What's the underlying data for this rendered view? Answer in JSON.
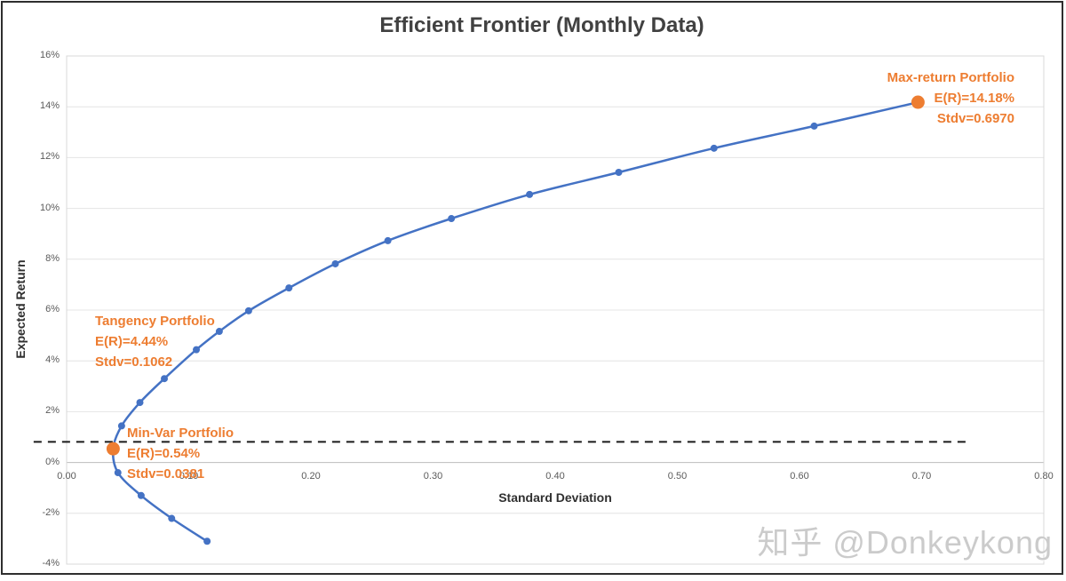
{
  "title": "Efficient Frontier (Monthly Data)",
  "watermark": "知乎 @Donkeykong",
  "colors": {
    "line": "#4472C4",
    "highlight": "#ED7D31",
    "grid": "#e4e4e4",
    "plot_border": "#d9d9d9",
    "zero_axis": "#bdbdbd",
    "dashed_line": "#1a1a1a",
    "tick_text": "#5a5a5a",
    "title_text": "#414141",
    "watermark_text": "#cbcbcb"
  },
  "chart_data": {
    "type": "line",
    "title": "Efficient Frontier (Monthly Data)",
    "xlabel": "Standard Deviation",
    "ylabel": "Expected Return",
    "xlim": [
      0.0,
      0.8
    ],
    "ylim": [
      -4,
      16
    ],
    "y_unit": "%",
    "grid": "horizontal-only",
    "x_ticks": {
      "labels": [
        "0.00",
        "0.10",
        "0.20",
        "0.30",
        "0.40",
        "0.50",
        "0.60",
        "0.70",
        "0.80"
      ],
      "values": [
        0.0,
        0.1,
        0.2,
        0.3,
        0.4,
        0.5,
        0.6,
        0.7,
        0.8
      ]
    },
    "y_ticks": {
      "labels": [
        "16%",
        "14%",
        "12%",
        "10%",
        "8%",
        "6%",
        "4%",
        "2%",
        "0%",
        "-2%",
        "-4%"
      ],
      "values": [
        16,
        14,
        12,
        10,
        8,
        6,
        4,
        2,
        0,
        -2,
        -4
      ]
    },
    "series": [
      {
        "name": "Efficient Frontier",
        "color": "#4472C4",
        "marker_color": "#4472C4",
        "points": [
          [
            0.115,
            -3.1
          ],
          [
            0.086,
            -2.2
          ],
          [
            0.061,
            -1.3
          ],
          [
            0.042,
            -0.4
          ],
          [
            0.0381,
            0.54
          ],
          [
            0.045,
            1.44
          ],
          [
            0.06,
            2.36
          ],
          [
            0.08,
            3.3
          ],
          [
            0.1062,
            4.44
          ],
          [
            0.125,
            5.16
          ],
          [
            0.149,
            5.97
          ],
          [
            0.182,
            6.87
          ],
          [
            0.22,
            7.82
          ],
          [
            0.263,
            8.73
          ],
          [
            0.315,
            9.6
          ],
          [
            0.379,
            10.55
          ],
          [
            0.452,
            11.42
          ],
          [
            0.53,
            12.37
          ],
          [
            0.612,
            13.24
          ],
          [
            0.697,
            14.18
          ]
        ]
      }
    ],
    "highlight_points": [
      {
        "name": "min-var-point",
        "x": 0.0381,
        "y": 0.54,
        "color": "#ED7D31"
      },
      {
        "name": "max-return-point",
        "x": 0.697,
        "y": 14.18,
        "color": "#ED7D31"
      }
    ],
    "dashed_line": {
      "y": 0.81,
      "x1": -0.027,
      "x2": 0.736,
      "color": "#1a1a1a"
    },
    "annotations": [
      {
        "id": "max-return",
        "align": "right",
        "lines": [
          "Max-return Portfolio",
          "E(R)=14.18%",
          "Stdv=0.6970"
        ]
      },
      {
        "id": "tangency",
        "align": "left",
        "lines": [
          "Tangency Portfolio",
          "E(R)=4.44%",
          "Stdv=0.1062"
        ]
      },
      {
        "id": "min-var",
        "align": "left",
        "lines": [
          "Min-Var Portfolio",
          "E(R)=0.54%",
          "Stdv=0.0381"
        ]
      }
    ]
  }
}
